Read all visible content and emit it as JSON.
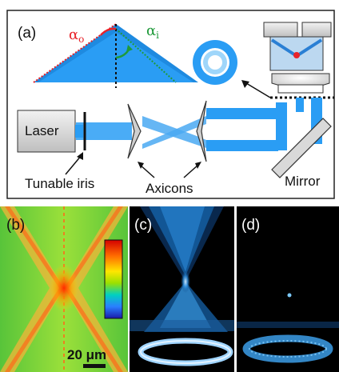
{
  "panels": {
    "a": {
      "tag": "(a)"
    },
    "b": {
      "tag": "(b)",
      "scale_bar": "20 μm"
    },
    "c": {
      "tag": "(c)"
    },
    "d": {
      "tag": "(d)"
    }
  },
  "labels": {
    "laser": "Laser",
    "tunable_iris": "Tunable iris",
    "axicons": "Axicons",
    "mirror": "Mirror",
    "alpha_o": "α",
    "alpha_o_sub": "o",
    "alpha_i": "α",
    "alpha_i_sub": "i"
  },
  "colors": {
    "beam": "#2a9df4",
    "beam_light": "#7cc8f7",
    "alpha_o": "#e8232a",
    "alpha_i": "#1f9a3a",
    "component_gray": "#c9c9c9",
    "panel_bg_dark": "#000000"
  }
}
